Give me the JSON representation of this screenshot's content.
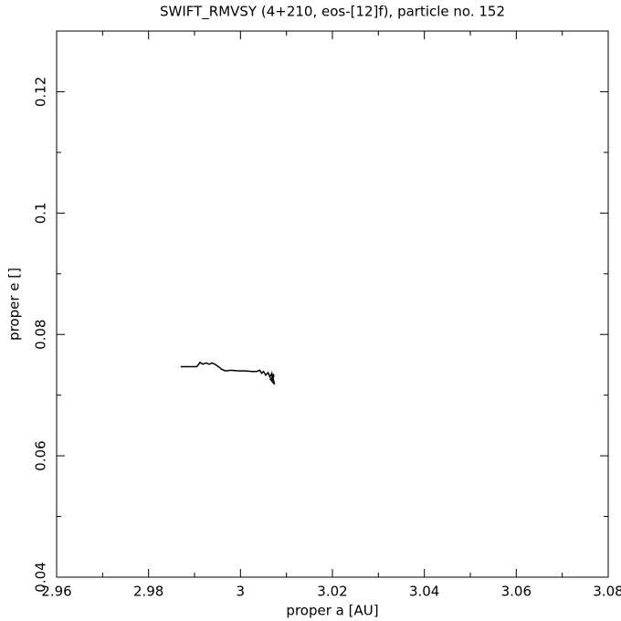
{
  "chart_data": {
    "type": "line",
    "title": "SWIFT_RMVSY (4+210, eos-[12]f), particle no. 152",
    "x_label": "proper a [AU]",
    "y_label": "proper e []",
    "x": [
      2.987,
      2.9905,
      2.9912,
      2.9918,
      2.9925,
      2.9932,
      2.9938,
      2.9944,
      2.9952,
      2.996,
      2.9968,
      2.998,
      2.9995,
      3.001,
      3.0025,
      3.0035,
      3.0042,
      3.0046,
      3.005,
      3.0055,
      3.006,
      3.0064,
      3.0068,
      3.007,
      3.0072,
      3.0068,
      3.0073,
      3.0065,
      3.0074,
      3.007
    ],
    "values": [
      0.0747,
      0.0747,
      0.0754,
      0.0751,
      0.0753,
      0.0751,
      0.0753,
      0.0751,
      0.0747,
      0.0742,
      0.074,
      0.0741,
      0.074,
      0.074,
      0.0739,
      0.0739,
      0.0741,
      0.0736,
      0.0739,
      0.0733,
      0.0737,
      0.073,
      0.0736,
      0.0724,
      0.0735,
      0.0722,
      0.0733,
      0.0726,
      0.0718,
      0.073
    ],
    "color": "#000000",
    "xlim": [
      2.96,
      3.08
    ],
    "ylim": [
      0.04,
      0.13
    ],
    "xticks": [
      2.96,
      2.98,
      3,
      3.02,
      3.04,
      3.06,
      3.08
    ],
    "yticks": [
      0.04,
      0.06,
      0.08,
      0.1,
      0.12
    ],
    "xminorticks": [
      2.97,
      2.99,
      3.01,
      3.03,
      3.05,
      3.07
    ],
    "yminorticks": [
      0.05,
      0.07,
      0.09,
      0.11
    ],
    "grid": false
  }
}
